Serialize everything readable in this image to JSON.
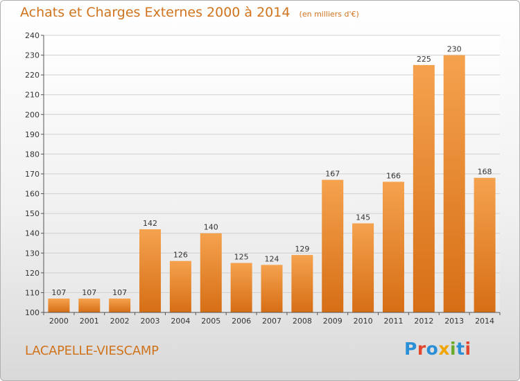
{
  "header": {
    "title": "Achats et Charges Externes 2000 à 2014",
    "subtitle": "(en milliers d'€)"
  },
  "footer": {
    "place": "LACAPELLE-VIESCAMP",
    "logo": {
      "text": "Proxiti",
      "letters": [
        {
          "ch": "P",
          "color": "#2a8fd6"
        },
        {
          "ch": "r",
          "color": "#e2462c"
        },
        {
          "ch": "o",
          "color": "#2a8fd6"
        },
        {
          "ch": "x",
          "color": "#f0a500"
        },
        {
          "ch": "i",
          "color": "#6aaa2a"
        },
        {
          "ch": "t",
          "color": "#2a8fd6"
        },
        {
          "ch": "i",
          "color": "#e2462c"
        }
      ]
    }
  },
  "colors": {
    "text_accent": "#d0731d",
    "bar_top": "#f5a24e",
    "bar_bottom": "#d66e15",
    "grid": "#cfcfcf",
    "axis_text": "#333333"
  },
  "chart_data": {
    "type": "bar",
    "categories": [
      "2000",
      "2001",
      "2002",
      "2003",
      "2004",
      "2005",
      "2006",
      "2007",
      "2008",
      "2009",
      "2010",
      "2011",
      "2012",
      "2013",
      "2014"
    ],
    "values": [
      107,
      107,
      107,
      142,
      126,
      140,
      125,
      124,
      129,
      167,
      145,
      166,
      225,
      230,
      168
    ],
    "ylim": [
      100,
      240
    ],
    "yticks": [
      100,
      110,
      120,
      130,
      140,
      150,
      160,
      170,
      180,
      190,
      200,
      210,
      220,
      230,
      240
    ],
    "grid": true,
    "data_labels": true
  }
}
